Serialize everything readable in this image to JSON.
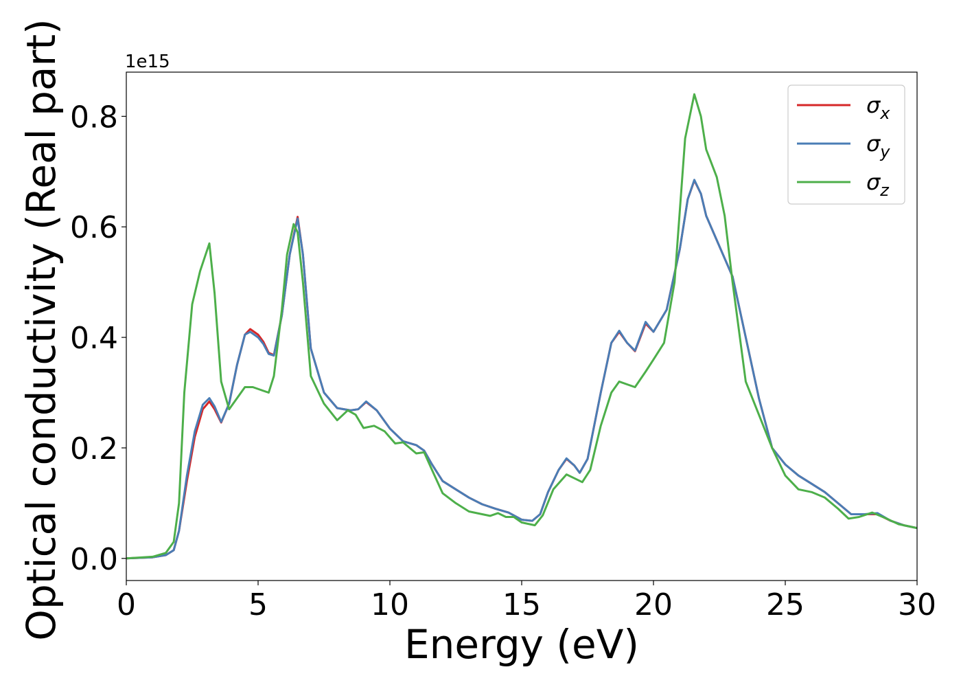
{
  "chart_data": {
    "type": "line",
    "xlabel": "Energy (eV)",
    "ylabel": "Optical conductivity (Real part)",
    "y_offset_text": "1e15",
    "xlim": [
      0,
      30
    ],
    "ylim": [
      -0.04,
      0.88
    ],
    "x_ticks": [
      0,
      5,
      10,
      15,
      20,
      25,
      30
    ],
    "x_tick_labels": [
      "0",
      "5",
      "10",
      "15",
      "20",
      "25",
      "30"
    ],
    "y_ticks": [
      0.0,
      0.2,
      0.4,
      0.6,
      0.8
    ],
    "y_tick_labels": [
      "0.0",
      "0.2",
      "0.4",
      "0.6",
      "0.8"
    ],
    "grid": false,
    "legend_position": "top-right",
    "series": [
      {
        "name": "σx",
        "legend_base": "σ",
        "legend_sub": "x",
        "color": "#d62728",
        "points": [
          [
            0,
            0.0
          ],
          [
            1,
            0.002
          ],
          [
            1.5,
            0.006
          ],
          [
            1.8,
            0.015
          ],
          [
            2.0,
            0.05
          ],
          [
            2.3,
            0.14
          ],
          [
            2.6,
            0.22
          ],
          [
            2.9,
            0.27
          ],
          [
            3.15,
            0.284
          ],
          [
            3.35,
            0.27
          ],
          [
            3.6,
            0.246
          ],
          [
            3.9,
            0.28
          ],
          [
            4.2,
            0.35
          ],
          [
            4.5,
            0.405
          ],
          [
            4.7,
            0.415
          ],
          [
            5.0,
            0.405
          ],
          [
            5.2,
            0.392
          ],
          [
            5.4,
            0.372
          ],
          [
            5.6,
            0.368
          ],
          [
            5.9,
            0.44
          ],
          [
            6.2,
            0.55
          ],
          [
            6.5,
            0.618
          ],
          [
            6.7,
            0.55
          ],
          [
            7.0,
            0.38
          ],
          [
            7.5,
            0.3
          ],
          [
            8.0,
            0.272
          ],
          [
            8.5,
            0.268
          ],
          [
            8.8,
            0.27
          ],
          [
            9.1,
            0.283
          ],
          [
            9.5,
            0.268
          ],
          [
            10.0,
            0.235
          ],
          [
            10.5,
            0.212
          ],
          [
            11.0,
            0.205
          ],
          [
            11.3,
            0.195
          ],
          [
            11.6,
            0.17
          ],
          [
            12.0,
            0.14
          ],
          [
            12.5,
            0.125
          ],
          [
            13.0,
            0.11
          ],
          [
            13.5,
            0.098
          ],
          [
            14.0,
            0.09
          ],
          [
            14.5,
            0.083
          ],
          [
            15.0,
            0.07
          ],
          [
            15.4,
            0.068
          ],
          [
            15.7,
            0.08
          ],
          [
            16.0,
            0.12
          ],
          [
            16.4,
            0.16
          ],
          [
            16.7,
            0.18
          ],
          [
            17.0,
            0.168
          ],
          [
            17.2,
            0.155
          ],
          [
            17.5,
            0.18
          ],
          [
            18.0,
            0.3
          ],
          [
            18.4,
            0.39
          ],
          [
            18.7,
            0.41
          ],
          [
            19.0,
            0.39
          ],
          [
            19.3,
            0.375
          ],
          [
            19.7,
            0.425
          ],
          [
            20.0,
            0.41
          ],
          [
            20.5,
            0.45
          ],
          [
            21.0,
            0.56
          ],
          [
            21.3,
            0.65
          ],
          [
            21.55,
            0.684
          ],
          [
            21.8,
            0.66
          ],
          [
            22.0,
            0.62
          ],
          [
            22.5,
            0.565
          ],
          [
            23.0,
            0.51
          ],
          [
            23.5,
            0.4
          ],
          [
            24.0,
            0.29
          ],
          [
            24.5,
            0.2
          ],
          [
            25.0,
            0.17
          ],
          [
            25.5,
            0.15
          ],
          [
            26.0,
            0.135
          ],
          [
            26.5,
            0.12
          ],
          [
            27.0,
            0.1
          ],
          [
            27.5,
            0.08
          ],
          [
            28.0,
            0.08
          ],
          [
            28.5,
            0.08
          ],
          [
            29.0,
            0.068
          ],
          [
            29.5,
            0.06
          ],
          [
            30.0,
            0.055
          ]
        ]
      },
      {
        "name": "σy",
        "legend_base": "σ",
        "legend_sub": "y",
        "color": "#4a7db5",
        "points": [
          [
            0,
            0.0
          ],
          [
            1,
            0.002
          ],
          [
            1.5,
            0.006
          ],
          [
            1.8,
            0.015
          ],
          [
            2.0,
            0.05
          ],
          [
            2.3,
            0.15
          ],
          [
            2.6,
            0.23
          ],
          [
            2.9,
            0.278
          ],
          [
            3.15,
            0.29
          ],
          [
            3.35,
            0.275
          ],
          [
            3.6,
            0.247
          ],
          [
            3.9,
            0.28
          ],
          [
            4.2,
            0.35
          ],
          [
            4.5,
            0.405
          ],
          [
            4.7,
            0.41
          ],
          [
            5.0,
            0.4
          ],
          [
            5.2,
            0.388
          ],
          [
            5.4,
            0.37
          ],
          [
            5.6,
            0.367
          ],
          [
            5.9,
            0.44
          ],
          [
            6.2,
            0.55
          ],
          [
            6.5,
            0.615
          ],
          [
            6.7,
            0.55
          ],
          [
            7.0,
            0.38
          ],
          [
            7.5,
            0.3
          ],
          [
            8.0,
            0.272
          ],
          [
            8.5,
            0.268
          ],
          [
            8.8,
            0.27
          ],
          [
            9.1,
            0.284
          ],
          [
            9.5,
            0.268
          ],
          [
            10.0,
            0.235
          ],
          [
            10.5,
            0.212
          ],
          [
            11.0,
            0.205
          ],
          [
            11.3,
            0.195
          ],
          [
            11.6,
            0.17
          ],
          [
            12.0,
            0.14
          ],
          [
            12.5,
            0.125
          ],
          [
            13.0,
            0.11
          ],
          [
            13.5,
            0.098
          ],
          [
            14.0,
            0.09
          ],
          [
            14.5,
            0.083
          ],
          [
            15.0,
            0.07
          ],
          [
            15.4,
            0.068
          ],
          [
            15.7,
            0.08
          ],
          [
            16.0,
            0.12
          ],
          [
            16.4,
            0.16
          ],
          [
            16.7,
            0.181
          ],
          [
            17.0,
            0.168
          ],
          [
            17.2,
            0.155
          ],
          [
            17.5,
            0.18
          ],
          [
            18.0,
            0.3
          ],
          [
            18.4,
            0.39
          ],
          [
            18.7,
            0.412
          ],
          [
            19.0,
            0.39
          ],
          [
            19.3,
            0.376
          ],
          [
            19.7,
            0.428
          ],
          [
            20.0,
            0.41
          ],
          [
            20.5,
            0.45
          ],
          [
            21.0,
            0.56
          ],
          [
            21.3,
            0.65
          ],
          [
            21.55,
            0.685
          ],
          [
            21.8,
            0.66
          ],
          [
            22.0,
            0.62
          ],
          [
            22.5,
            0.565
          ],
          [
            23.0,
            0.51
          ],
          [
            23.5,
            0.4
          ],
          [
            24.0,
            0.29
          ],
          [
            24.5,
            0.2
          ],
          [
            25.0,
            0.17
          ],
          [
            25.5,
            0.15
          ],
          [
            26.0,
            0.135
          ],
          [
            26.5,
            0.12
          ],
          [
            27.0,
            0.1
          ],
          [
            27.5,
            0.08
          ],
          [
            28.0,
            0.08
          ],
          [
            28.5,
            0.082
          ],
          [
            29.0,
            0.068
          ],
          [
            29.5,
            0.06
          ],
          [
            30.0,
            0.055
          ]
        ]
      },
      {
        "name": "σz",
        "legend_base": "σ",
        "legend_sub": "z",
        "color": "#4daf4a",
        "points": [
          [
            0,
            0.0
          ],
          [
            1,
            0.003
          ],
          [
            1.5,
            0.01
          ],
          [
            1.8,
            0.03
          ],
          [
            2.0,
            0.1
          ],
          [
            2.2,
            0.3
          ],
          [
            2.5,
            0.46
          ],
          [
            2.8,
            0.52
          ],
          [
            3.15,
            0.57
          ],
          [
            3.35,
            0.48
          ],
          [
            3.6,
            0.32
          ],
          [
            3.9,
            0.27
          ],
          [
            4.2,
            0.29
          ],
          [
            4.5,
            0.31
          ],
          [
            4.8,
            0.31
          ],
          [
            5.1,
            0.305
          ],
          [
            5.4,
            0.3
          ],
          [
            5.6,
            0.33
          ],
          [
            5.9,
            0.45
          ],
          [
            6.1,
            0.55
          ],
          [
            6.35,
            0.605
          ],
          [
            6.5,
            0.59
          ],
          [
            6.7,
            0.5
          ],
          [
            7.0,
            0.33
          ],
          [
            7.5,
            0.28
          ],
          [
            8.0,
            0.25
          ],
          [
            8.4,
            0.268
          ],
          [
            8.7,
            0.26
          ],
          [
            9.0,
            0.236
          ],
          [
            9.4,
            0.24
          ],
          [
            9.8,
            0.23
          ],
          [
            10.2,
            0.208
          ],
          [
            10.5,
            0.21
          ],
          [
            11.0,
            0.19
          ],
          [
            11.3,
            0.192
          ],
          [
            11.6,
            0.16
          ],
          [
            12.0,
            0.118
          ],
          [
            12.5,
            0.1
          ],
          [
            13.0,
            0.085
          ],
          [
            13.5,
            0.08
          ],
          [
            13.8,
            0.077
          ],
          [
            14.1,
            0.082
          ],
          [
            14.4,
            0.075
          ],
          [
            14.7,
            0.075
          ],
          [
            15.0,
            0.065
          ],
          [
            15.5,
            0.06
          ],
          [
            15.8,
            0.078
          ],
          [
            16.2,
            0.125
          ],
          [
            16.7,
            0.152
          ],
          [
            17.0,
            0.145
          ],
          [
            17.3,
            0.138
          ],
          [
            17.6,
            0.16
          ],
          [
            18.0,
            0.24
          ],
          [
            18.4,
            0.3
          ],
          [
            18.7,
            0.32
          ],
          [
            19.0,
            0.315
          ],
          [
            19.3,
            0.31
          ],
          [
            19.7,
            0.338
          ],
          [
            20.0,
            0.36
          ],
          [
            20.4,
            0.39
          ],
          [
            20.8,
            0.5
          ],
          [
            21.2,
            0.76
          ],
          [
            21.55,
            0.84
          ],
          [
            21.8,
            0.8
          ],
          [
            22.0,
            0.74
          ],
          [
            22.4,
            0.69
          ],
          [
            22.7,
            0.62
          ],
          [
            23.0,
            0.5
          ],
          [
            23.5,
            0.32
          ],
          [
            24.0,
            0.26
          ],
          [
            24.5,
            0.2
          ],
          [
            25.0,
            0.15
          ],
          [
            25.5,
            0.125
          ],
          [
            26.0,
            0.12
          ],
          [
            26.5,
            0.11
          ],
          [
            27.0,
            0.09
          ],
          [
            27.4,
            0.072
          ],
          [
            27.8,
            0.075
          ],
          [
            28.3,
            0.083
          ],
          [
            28.8,
            0.073
          ],
          [
            29.3,
            0.062
          ],
          [
            30.0,
            0.055
          ]
        ]
      }
    ]
  }
}
